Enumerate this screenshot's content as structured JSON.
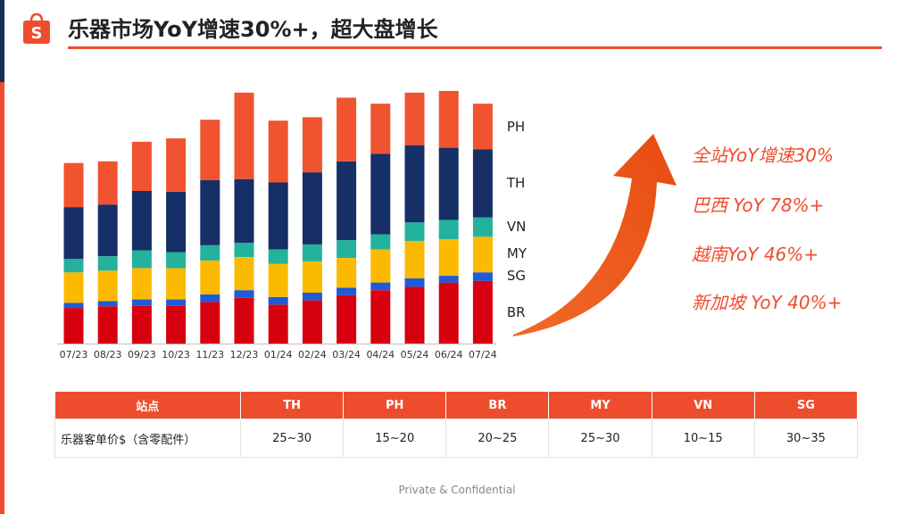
{
  "header": {
    "title": "乐器市场YoY增速30%+，超大盘增长",
    "logo_letter": "S"
  },
  "colors": {
    "accent": "#ee4d2d",
    "BR": "#d7000f",
    "SG": "#1f5ad8",
    "MY": "#fbba00",
    "VN": "#25b29c",
    "TH": "#162f66",
    "PH": "#f0532f"
  },
  "chart_data": {
    "type": "bar",
    "stacked": true,
    "title": "",
    "xlabel": "",
    "ylabel": "",
    "categories": [
      "07/23",
      "08/23",
      "09/23",
      "10/23",
      "11/23",
      "12/23",
      "01/24",
      "02/24",
      "03/24",
      "04/24",
      "05/24",
      "06/24",
      "07/24"
    ],
    "series": [
      {
        "name": "BR",
        "values": [
          42,
          44,
          45,
          45,
          49,
          54,
          46,
          51,
          57,
          63,
          67,
          72,
          74
        ]
      },
      {
        "name": "SG",
        "values": [
          6,
          6,
          7,
          7,
          9,
          9,
          9,
          9,
          9,
          9,
          10,
          8,
          10
        ]
      },
      {
        "name": "MY",
        "values": [
          36,
          36,
          37,
          37,
          40,
          39,
          39,
          37,
          35,
          39,
          44,
          43,
          42
        ]
      },
      {
        "name": "VN",
        "values": [
          16,
          17,
          21,
          19,
          18,
          17,
          17,
          20,
          21,
          18,
          22,
          23,
          23
        ]
      },
      {
        "name": "TH",
        "values": [
          61,
          61,
          70,
          71,
          77,
          75,
          79,
          85,
          93,
          95,
          91,
          85,
          80
        ]
      },
      {
        "name": "PH",
        "values": [
          52,
          51,
          58,
          63,
          71,
          102,
          73,
          65,
          75,
          59,
          62,
          67,
          54
        ]
      }
    ],
    "ylim": [
      0,
      300
    ],
    "legend_position": "right",
    "gridlines": false,
    "annotations": [
      "全站YoY增速30%",
      "巴西 YoY 78%+",
      "越南YoY 46%+",
      "新加坡 YoY 40%+"
    ]
  },
  "table": {
    "headers": [
      "站点",
      "TH",
      "PH",
      "BR",
      "MY",
      "VN",
      "SG"
    ],
    "row_label": "乐器客单价$（含零配件）",
    "values": [
      "25~30",
      "15~20",
      "20~25",
      "25~30",
      "10~15",
      "30~35"
    ]
  },
  "footer": "Private & Confidential"
}
